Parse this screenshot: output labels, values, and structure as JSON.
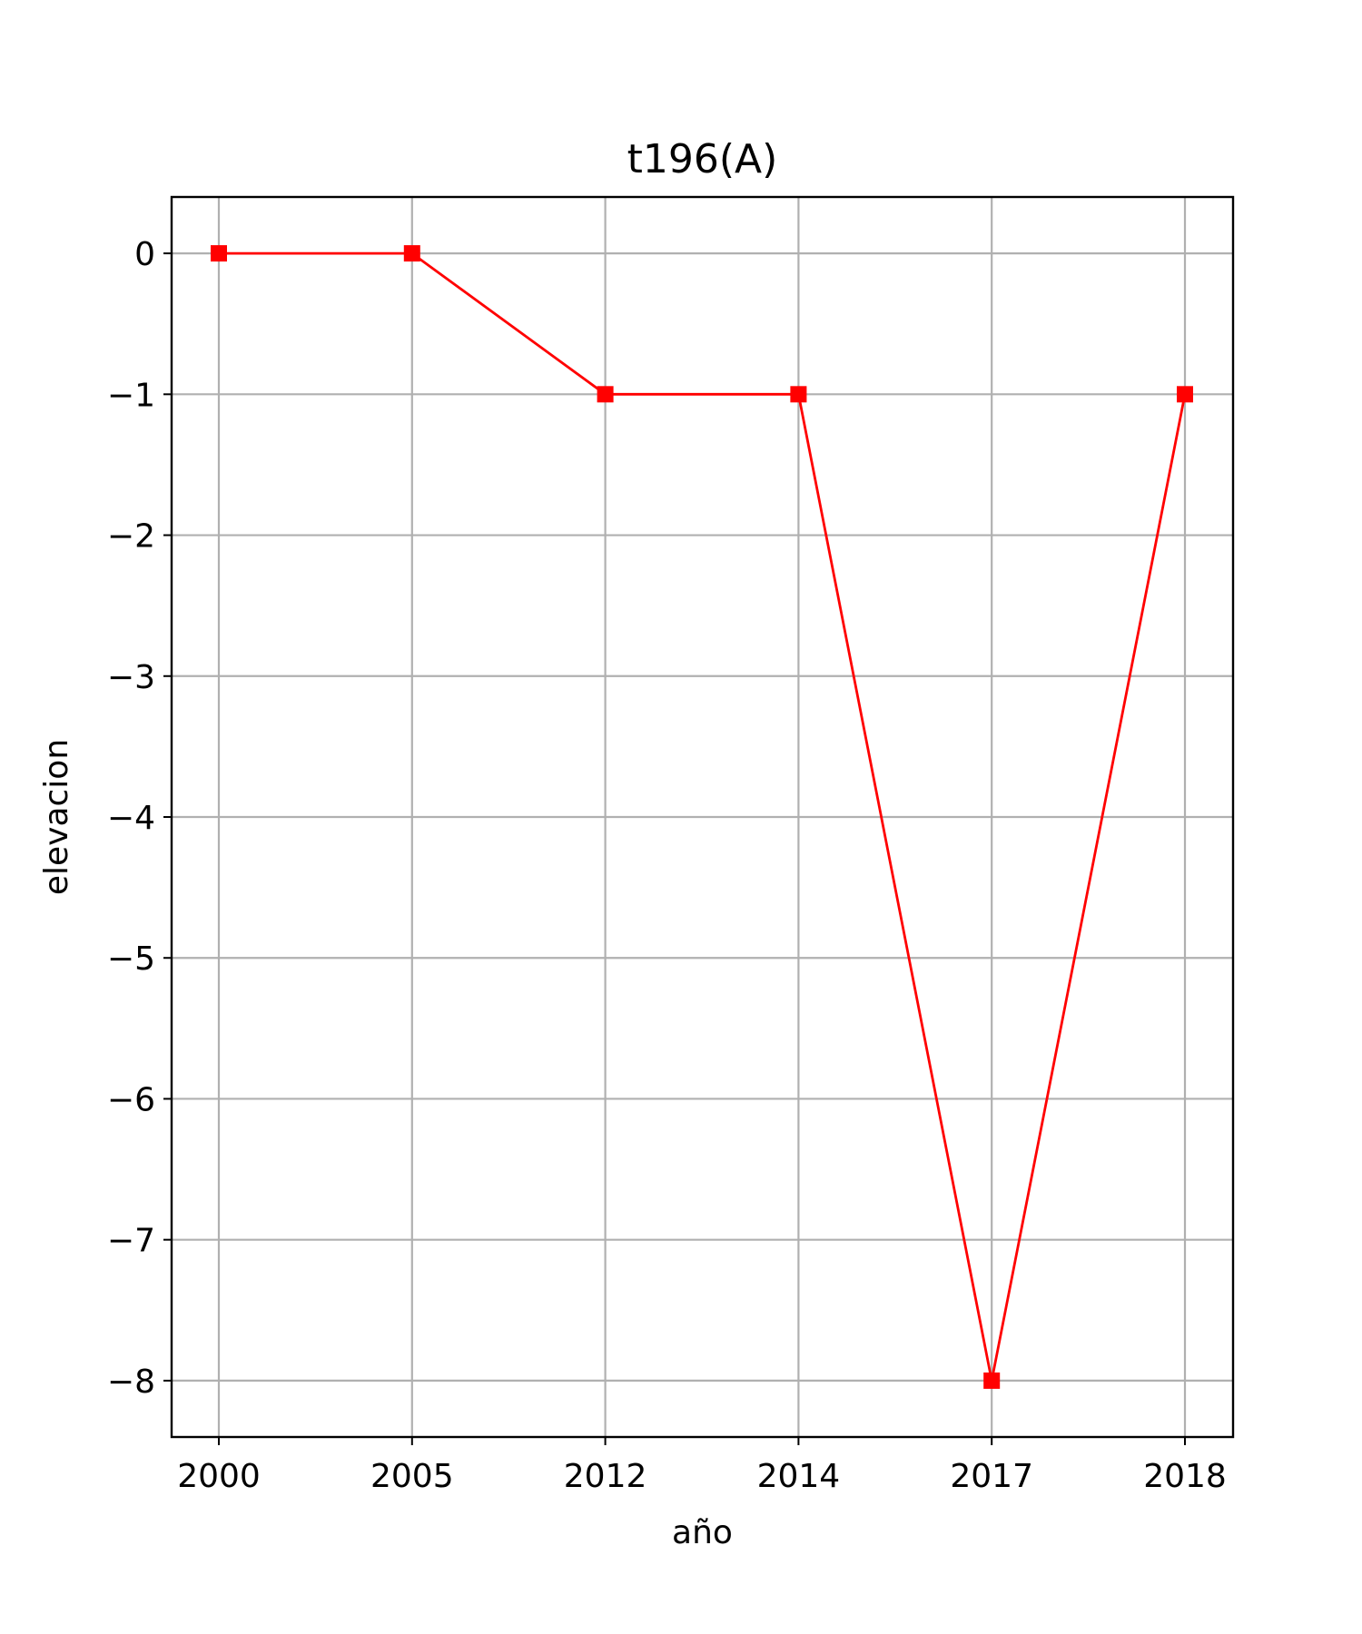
{
  "chart_data": {
    "type": "line",
    "title": "t196(A)",
    "xlabel": "año",
    "ylabel": "elevacion",
    "categories": [
      "2000",
      "2005",
      "2012",
      "2014",
      "2017",
      "2018"
    ],
    "series": [
      {
        "values": [
          0,
          0,
          -1,
          -1,
          -8,
          -1
        ],
        "color": "#ff0000",
        "marker": "square"
      }
    ],
    "yticks": [
      0,
      -1,
      -2,
      -3,
      -4,
      -5,
      -6,
      -7,
      -8
    ],
    "ytick_labels": [
      "0",
      "−1",
      "−2",
      "−3",
      "−4",
      "−5",
      "−6",
      "−7",
      "−8"
    ],
    "ylim": [
      -8.4,
      0.4
    ],
    "grid": true,
    "legend": "none"
  }
}
